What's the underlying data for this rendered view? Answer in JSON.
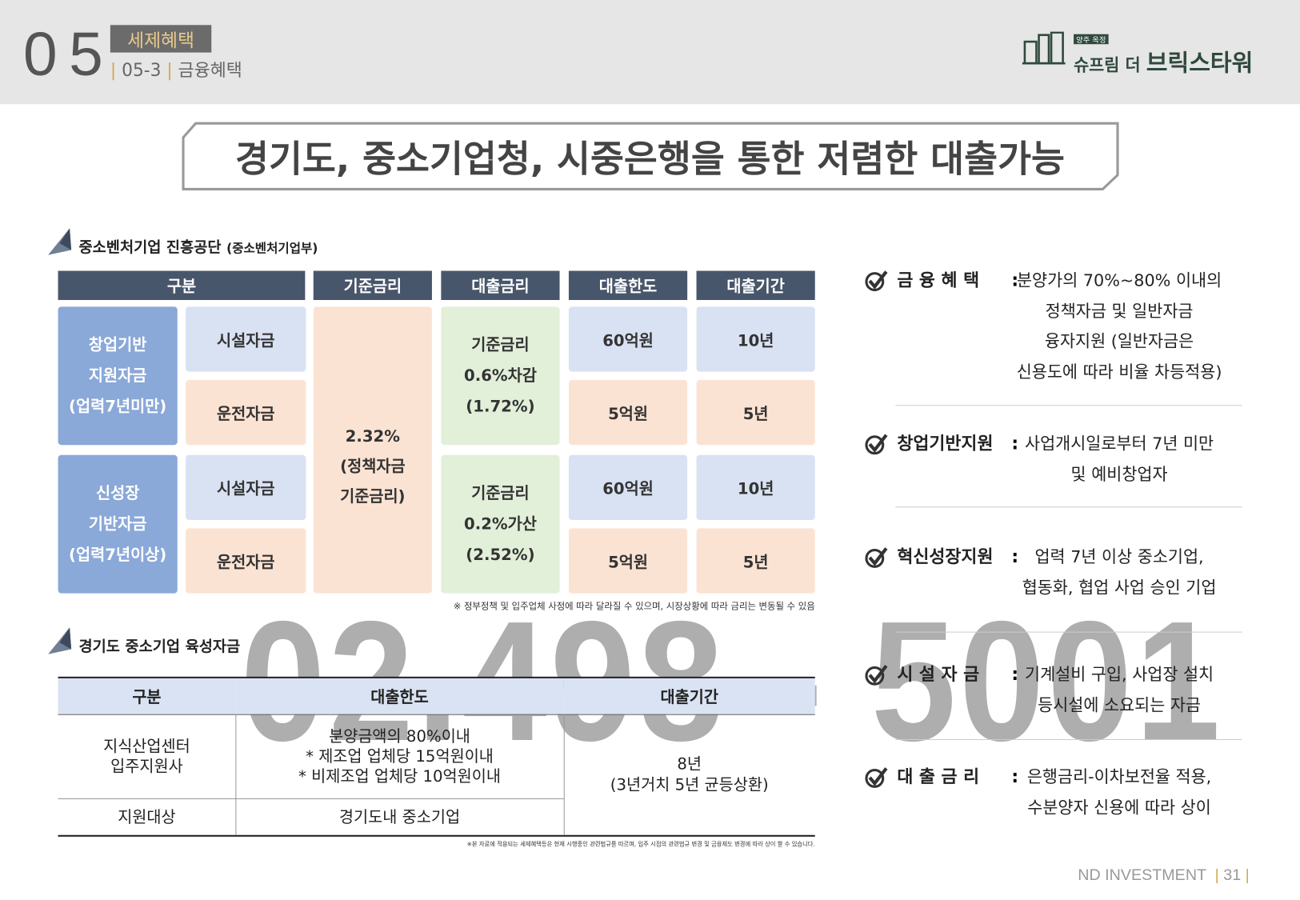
{
  "header": {
    "section_number": "05",
    "section_title": "세제혜택",
    "subsection_number": "05-3",
    "subsection_title": "금융혜택",
    "logo_tag": "양주 옥정",
    "logo_name_1": "슈프림 더",
    "logo_name_2": "브릭스타워"
  },
  "headline": "경기도, 중소기업청, 시중은행을 통한 저렴한 대출가능",
  "section1": {
    "title": "중소벤처기업 진흥공단",
    "subtitle": "(중소벤처기업부)",
    "headers": [
      "구분",
      "기준금리",
      "대출금리",
      "대출한도",
      "대출기간"
    ],
    "base_rate": [
      "2.32%",
      "(정책자금",
      "기준금리)"
    ],
    "groups": [
      {
        "label": [
          "창업기반",
          "지원자금",
          "(업력7년미만)"
        ],
        "loan_rate": [
          "기준금리",
          "0.6%차감",
          "(1.72%)"
        ],
        "rows": [
          {
            "type": "시설자금",
            "limit": "60억원",
            "period": "10년"
          },
          {
            "type": "운전자금",
            "limit": "5억원",
            "period": "5년"
          }
        ]
      },
      {
        "label": [
          "신성장",
          "기반자금",
          "(업력7년이상)"
        ],
        "loan_rate": [
          "기준금리",
          "0.2%가산",
          "(2.52%)"
        ],
        "rows": [
          {
            "type": "시설자금",
            "limit": "60억원",
            "period": "10년"
          },
          {
            "type": "운전자금",
            "limit": "5억원",
            "period": "5년"
          }
        ]
      }
    ],
    "note": "※ 정부정책 및 입주업체 사정에 따라 달라질 수 있으며, 시장상황에 따라 금리는 변동될 수 있음"
  },
  "section2": {
    "title": "경기도 중소기업 육성자금",
    "headers": [
      "구분",
      "대출한도",
      "대출기간"
    ],
    "rows": [
      {
        "category": [
          "지식산업센터",
          "입주지원사"
        ],
        "limit": [
          "분양금액의 80%이내",
          "* 제조업 업체당 15억원이내",
          "* 비제조업 업체당 10억원이내"
        ]
      },
      {
        "category": [
          "지원대상"
        ],
        "limit": [
          "경기도내 중소기업"
        ]
      }
    ],
    "period": [
      "8년",
      "(3년거치 5년 균등상환)"
    ],
    "note": "※본 자료에 적용되는 세제혜택등은 현재 시행중인 관련법규를 따르며, 입주 시점의 관련법규 변경 및 금융제도 변경에 따라 상이 할 수 있습니다."
  },
  "watermark": "02.498 - 5001",
  "benefits": [
    {
      "label": "금 융 혜 택",
      "lines": [
        "분양가의 70%~80% 이내의",
        "정책자금 및 일반자금",
        "융자지원 (일반자금은",
        "신용도에 따라 비율 차등적용)"
      ]
    },
    {
      "label": "창업기반지원",
      "lines": [
        "사업개시일로부터 7년 미만",
        "및 예비창업자"
      ]
    },
    {
      "label": "혁신성장지원",
      "lines": [
        "업력 7년 이상 중소기업,",
        "협동화, 협업 사업 승인 기업"
      ]
    },
    {
      "label": "시 설 자 금",
      "lines": [
        "기계설비 구입, 사업장 설치",
        "등시설에 소요되는 자금"
      ]
    },
    {
      "label": "대 출 금 리",
      "lines": [
        "은행금리-이차보전율 적용,",
        "수분양자 신용에 따라 상이"
      ]
    }
  ],
  "footer": {
    "company": "ND INVESTMENT",
    "page": "31"
  }
}
